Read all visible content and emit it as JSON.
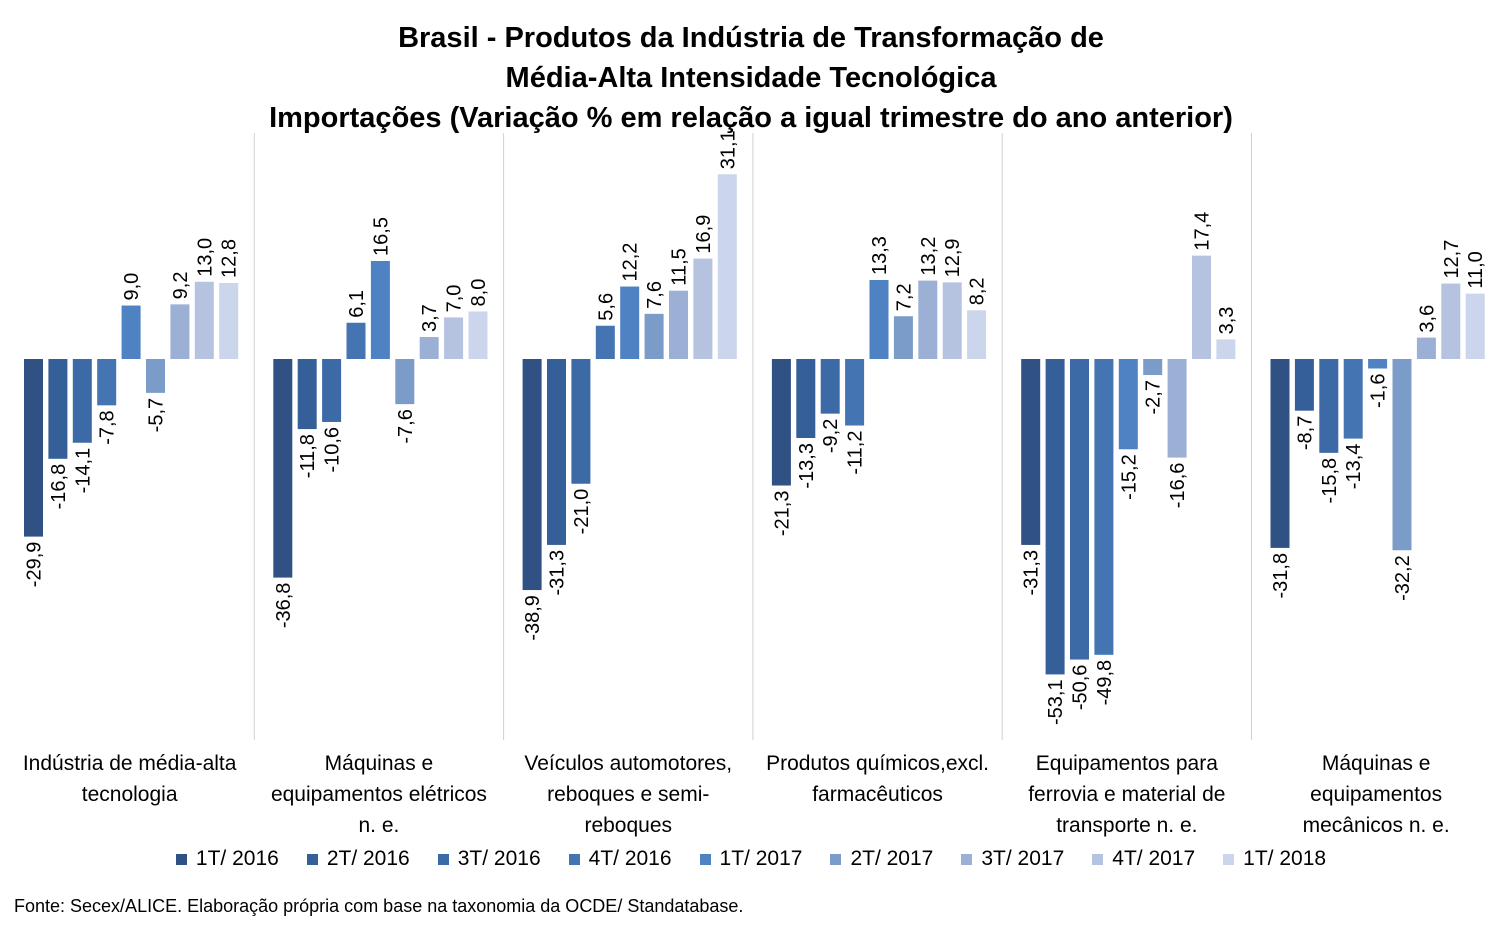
{
  "chart_data": {
    "type": "bar",
    "title": [
      "Brasil - Produtos da Indústria de Transformação de",
      "Média-Alta Intensidade Tecnológica",
      "Importações (Variação % em relação a igual trimestre do ano anterior)"
    ],
    "categories": [
      [
        "Indústria de média-alta",
        "tecnologia"
      ],
      [
        "Máquinas e",
        "equipamentos elétricos",
        "n. e."
      ],
      [
        "Veículos automotores,",
        "reboques e semi-",
        "reboques"
      ],
      [
        "Produtos químicos,excl.",
        "farmacêuticos"
      ],
      [
        "Equipamentos para",
        "ferrovia e material de",
        "transporte n. e."
      ],
      [
        "Máquinas e",
        "equipamentos",
        "mecânicos  n. e."
      ]
    ],
    "series": [
      {
        "name": "1T/ 2016",
        "color": "#2f5183",
        "values": [
          -29.9,
          -36.8,
          -38.9,
          -21.3,
          -31.3,
          -31.8
        ],
        "labels": [
          "-29,9",
          "-36,8",
          "-38,9",
          "-21,3",
          "-31,3",
          "-31,8"
        ]
      },
      {
        "name": "2T/ 2016",
        "color": "#355f98",
        "values": [
          -16.8,
          -11.8,
          -31.3,
          -13.3,
          -53.1,
          -8.7
        ],
        "labels": [
          "-16,8",
          "-11,8",
          "-31,3",
          "-13,3",
          "-53,1",
          "-8,7"
        ]
      },
      {
        "name": "3T/ 2016",
        "color": "#3c6aa7",
        "values": [
          -14.1,
          -10.6,
          -21.0,
          -9.2,
          -50.6,
          -15.8
        ],
        "labels": [
          "-14,1",
          "-10,6",
          "-21,0",
          "-9,2",
          "-50,6",
          "-15,8"
        ]
      },
      {
        "name": "4T/ 2016",
        "color": "#4474b2",
        "values": [
          -7.8,
          6.1,
          5.6,
          -11.2,
          -49.8,
          -13.4
        ],
        "labels": [
          "-7,8",
          "6,1",
          "5,6",
          "-11,2",
          "-49,8",
          "-13,4"
        ]
      },
      {
        "name": "1T/ 2017",
        "color": "#4f82c2",
        "values": [
          9.0,
          16.5,
          12.2,
          13.3,
          -15.2,
          -1.6
        ],
        "labels": [
          "9,0",
          "16,5",
          "12,2",
          "13,3",
          "-15,2",
          "-1,6"
        ]
      },
      {
        "name": "2T/ 2017",
        "color": "#7b9bc8",
        "values": [
          -5.7,
          -7.6,
          7.6,
          7.2,
          -2.7,
          -32.2
        ],
        "labels": [
          "-5,7",
          "-7,6",
          "7,6",
          "7,2",
          "-2,7",
          "-32,2"
        ]
      },
      {
        "name": "3T/ 2017",
        "color": "#9cb0d6",
        "values": [
          9.2,
          3.7,
          11.5,
          13.2,
          -16.6,
          3.6
        ],
        "labels": [
          "9,2",
          "3,7",
          "11,5",
          "13,2",
          "-16,6",
          "3,6"
        ]
      },
      {
        "name": "4T/ 2017",
        "color": "#b5c3e0",
        "values": [
          13.0,
          7.0,
          16.9,
          12.9,
          17.4,
          12.7
        ],
        "labels": [
          "13,0",
          "7,0",
          "16,9",
          "12,9",
          "17,4",
          "12,7"
        ]
      },
      {
        "name": "1T/ 2018",
        "color": "#cbd5eb",
        "values": [
          12.8,
          8.0,
          31.1,
          8.2,
          3.3,
          11.0
        ],
        "labels": [
          "12,8",
          "8,0",
          "31,1",
          "8,2",
          "3,3",
          "11,0"
        ]
      }
    ],
    "ylim": [
      -60,
      36
    ],
    "grid": false,
    "legend_position": "bottom",
    "source": "Fonte: Secex/ALICE. Elaboração própria com base na taxonomia da OCDE/ Standatabase."
  }
}
